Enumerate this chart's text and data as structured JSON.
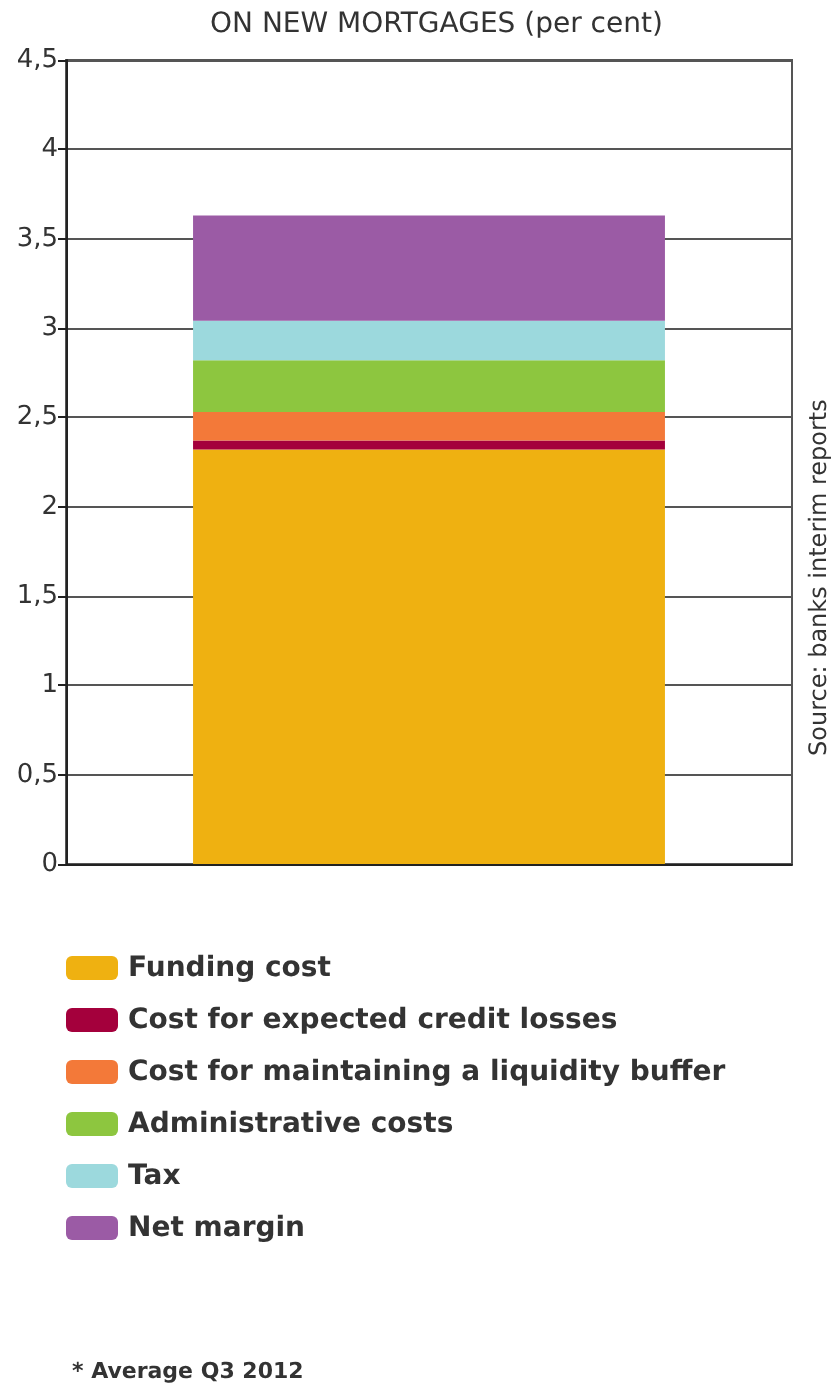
{
  "chart_data": {
    "type": "bar",
    "title": "ON NEW MORTGAGES (per cent)",
    "categories": [
      null
    ],
    "stacked": true,
    "series": [
      {
        "name": "Funding cost",
        "color": "#efb111",
        "values": [
          2.32
        ]
      },
      {
        "name": "Cost for expected credit losses",
        "color": "#a4003c",
        "values": [
          0.05
        ]
      },
      {
        "name": "Cost for maintaining a liquidity buffer",
        "color": "#f37939",
        "values": [
          0.16
        ]
      },
      {
        "name": "Administrative costs",
        "color": "#8dc63f",
        "values": [
          0.29
        ]
      },
      {
        "name": "Tax",
        "color": "#9cd9dd",
        "values": [
          0.22
        ]
      },
      {
        "name": "Net margin",
        "color": "#9b5ba5",
        "values": [
          0.59
        ]
      }
    ],
    "ylim": [
      0,
      4.5
    ],
    "yticks": [
      0,
      {
        "value": 0.5,
        "label": "0,5"
      },
      1,
      {
        "value": 1.5,
        "label": "1,5"
      },
      2,
      {
        "value": 2.5,
        "label": "2,5"
      },
      3,
      {
        "value": 3.5,
        "label": "3,5"
      },
      4,
      {
        "value": 4.5,
        "label": "4,5"
      }
    ],
    "grid": "y",
    "legend": "bottom",
    "annotations": [
      "Source: banks interim reports",
      "* Average Q3 2012"
    ]
  }
}
